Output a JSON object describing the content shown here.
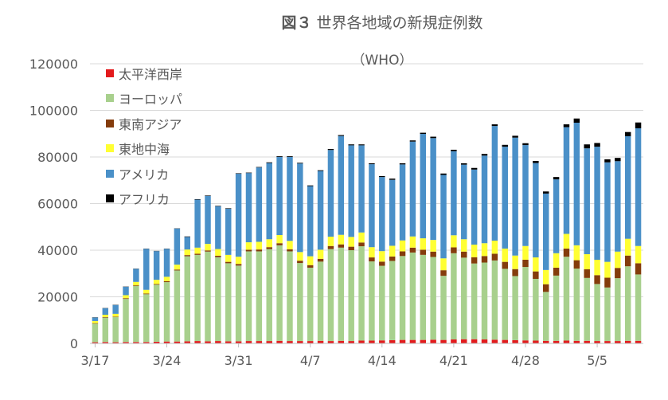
{
  "title": {
    "fig_label": "図３",
    "text": "世界各地域の新規症例数"
  },
  "subtitle": "（WHO）",
  "chart_data": {
    "type": "bar",
    "stacked": true,
    "title": "図３ 世界各地域の新規症例数",
    "subtitle": "（WHO）",
    "xlabel": "",
    "ylabel": "",
    "ylim": [
      0,
      120000
    ],
    "yticks": [
      0,
      20000,
      40000,
      60000,
      80000,
      100000,
      120000
    ],
    "grid": {
      "horizontal": true,
      "vertical": false
    },
    "legend_position": "top-left",
    "categories": [
      "3/17",
      "3/18",
      "3/19",
      "3/20",
      "3/21",
      "3/22",
      "3/23",
      "3/24",
      "3/25",
      "3/26",
      "3/27",
      "3/28",
      "3/29",
      "3/30",
      "3/31",
      "4/1",
      "4/2",
      "4/3",
      "4/4",
      "4/5",
      "4/6",
      "4/7",
      "4/8",
      "4/9",
      "4/10",
      "4/11",
      "4/12",
      "4/13",
      "4/14",
      "4/15",
      "4/16",
      "4/17",
      "4/18",
      "4/19",
      "4/20",
      "4/21",
      "4/22",
      "4/23",
      "4/24",
      "4/25",
      "4/26",
      "4/27",
      "4/28",
      "4/29",
      "4/30",
      "5/1",
      "5/2",
      "5/3",
      "5/4",
      "5/5",
      "5/6",
      "5/7",
      "5/8",
      "5/9"
    ],
    "xtick_labels": [
      {
        "index": 0,
        "label": "3/17"
      },
      {
        "index": 7,
        "label": "3/24"
      },
      {
        "index": 14,
        "label": "3/31"
      },
      {
        "index": 21,
        "label": "4/7"
      },
      {
        "index": 28,
        "label": "4/14"
      },
      {
        "index": 35,
        "label": "4/21"
      },
      {
        "index": 42,
        "label": "4/28"
      },
      {
        "index": 49,
        "label": "5/5"
      }
    ],
    "series": [
      {
        "name": "太平洋西岸",
        "color": "#e31a1c",
        "values": [
          500,
          600,
          500,
          600,
          600,
          600,
          700,
          800,
          800,
          900,
          1000,
          900,
          1000,
          900,
          900,
          1000,
          1000,
          1000,
          1100,
          1000,
          1000,
          1000,
          1100,
          1000,
          1100,
          1000,
          1200,
          1200,
          1300,
          1400,
          1500,
          1500,
          1500,
          1600,
          1500,
          1700,
          1800,
          1800,
          1700,
          1600,
          1500,
          1400,
          1300,
          1200,
          1100,
          1100,
          1200,
          1100,
          1100,
          1000,
          1000,
          1000,
          1100,
          1100
        ]
      },
      {
        "name": "ヨーロッパ",
        "color": "#a8d08d",
        "values": [
          8000,
          10500,
          10800,
          18500,
          24000,
          20500,
          24500,
          25500,
          30500,
          36500,
          37000,
          38500,
          36000,
          33500,
          32500,
          38500,
          38500,
          39500,
          41000,
          38500,
          33500,
          31500,
          34000,
          39500,
          40000,
          39000,
          40500,
          34000,
          32000,
          34000,
          36000,
          37500,
          36500,
          35500,
          27500,
          37000,
          35000,
          32500,
          33000,
          34000,
          30500,
          27500,
          31500,
          26500,
          21000,
          28000,
          36000,
          31000,
          27000,
          24500,
          23000,
          27000,
          32000,
          28500
        ]
      },
      {
        "name": "東南アジア",
        "color": "#843c0c",
        "values": [
          200,
          200,
          200,
          300,
          300,
          300,
          300,
          400,
          400,
          500,
          500,
          500,
          600,
          600,
          700,
          700,
          800,
          800,
          900,
          900,
          1000,
          1100,
          1200,
          1300,
          1400,
          1500,
          1600,
          1700,
          1800,
          1900,
          2000,
          2100,
          2200,
          2300,
          2400,
          2500,
          2600,
          2700,
          2800,
          2900,
          3000,
          3000,
          3100,
          3200,
          3300,
          3400,
          3500,
          3600,
          3700,
          3800,
          4200,
          4400,
          4600,
          4800
        ]
      },
      {
        "name": "東地中海",
        "color": "#ffff33",
        "values": [
          900,
          1000,
          1200,
          1300,
          1500,
          1600,
          1800,
          1900,
          2100,
          2400,
          2600,
          2800,
          2900,
          3000,
          3100,
          3200,
          3300,
          3400,
          3500,
          3600,
          3700,
          3800,
          3900,
          4000,
          4100,
          4200,
          4300,
          4400,
          4500,
          4600,
          4700,
          4800,
          4900,
          5000,
          5100,
          5200,
          5300,
          5400,
          5500,
          5600,
          5700,
          5800,
          5900,
          6000,
          6100,
          6200,
          6300,
          6400,
          6500,
          6600,
          6800,
          7000,
          7200,
          7400
        ]
      },
      {
        "name": "アメリカ",
        "color": "#4a90c8",
        "values": [
          1500,
          2800,
          3800,
          3600,
          5600,
          17600,
          12300,
          12000,
          15500,
          5400,
          20600,
          20600,
          18300,
          19800,
          35600,
          29700,
          31900,
          32700,
          33500,
          36000,
          38000,
          30100,
          33800,
          37200,
          42400,
          39300,
          37400,
          35600,
          31800,
          28300,
          32600,
          40700,
          44800,
          43700,
          35800,
          36100,
          32000,
          32200,
          37600,
          49200,
          43700,
          50600,
          43300,
          40500,
          32800,
          31700,
          45800,
          52600,
          45400,
          48500,
          42700,
          38800,
          44000,
          50500
        ]
      },
      {
        "name": "アフリカ",
        "color": "#000000",
        "values": [
          100,
          100,
          100,
          100,
          100,
          100,
          100,
          100,
          100,
          200,
          200,
          200,
          200,
          200,
          200,
          200,
          200,
          300,
          300,
          300,
          300,
          300,
          300,
          400,
          400,
          400,
          400,
          400,
          400,
          500,
          500,
          500,
          500,
          600,
          600,
          600,
          600,
          700,
          700,
          700,
          800,
          800,
          800,
          900,
          900,
          1000,
          1200,
          1800,
          1700,
          1600,
          1300,
          1400,
          1800,
          2500
        ]
      }
    ]
  }
}
